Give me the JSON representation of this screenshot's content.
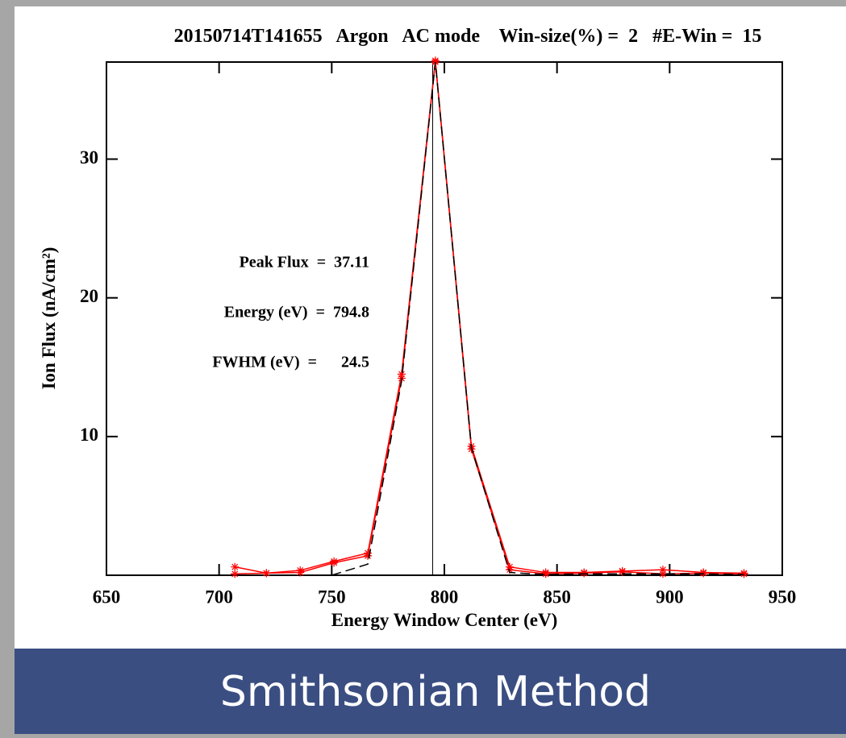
{
  "chart_data": {
    "type": "line",
    "title": "20150714T141655   Argon   AC mode    Win-size(%) =  2   #E-Win =  15",
    "x_label": "Energy Window Center (eV)",
    "y_label": "Ion Flux (nA/cm²)",
    "annotations": [
      "Peak Flux  =  37.11",
      "Energy (eV)  =  794.8",
      "FWHM (eV)  =      24.5"
    ],
    "vline_x": 794.8,
    "xlim": [
      650,
      950
    ],
    "xticks": [
      650,
      700,
      750,
      800,
      850,
      900,
      950
    ],
    "ylim": [
      0,
      37
    ],
    "yticks": [
      10,
      20,
      30
    ],
    "series": [
      {
        "color": "#ff0000",
        "marker": "star",
        "dash": false,
        "x": [
          707,
          721,
          736,
          751,
          766,
          781,
          796,
          812,
          829,
          845,
          862,
          879,
          897,
          915,
          933
        ],
        "values": [
          0.6,
          0.15,
          0.35,
          1.0,
          1.6,
          14.5,
          37.1,
          9.3,
          0.6,
          0.2,
          0.2,
          0.3,
          0.4,
          0.2,
          0.15
        ]
      },
      {
        "color": "#ff0000",
        "marker": "star",
        "dash": false,
        "x": [
          707,
          721,
          736,
          751,
          766,
          781,
          796,
          812,
          829,
          845,
          862,
          879,
          897,
          915,
          933
        ],
        "values": [
          0.1,
          0.15,
          0.2,
          0.9,
          1.4,
          14.2,
          37.0,
          9.1,
          0.4,
          0.1,
          0.15,
          0.25,
          0.1,
          0.15,
          0.1
        ]
      },
      {
        "color": "#000000",
        "marker": "none",
        "dash": true,
        "x": [
          750,
          766,
          781,
          796,
          812,
          829,
          845,
          862,
          879,
          897,
          915,
          933
        ],
        "values": [
          0,
          0.8,
          14.0,
          37.0,
          9.2,
          0.2,
          0.05,
          0.1,
          0.1,
          0.1,
          0.1,
          0.05
        ]
      }
    ]
  },
  "banner": {
    "text": "Smithsonian Method"
  }
}
